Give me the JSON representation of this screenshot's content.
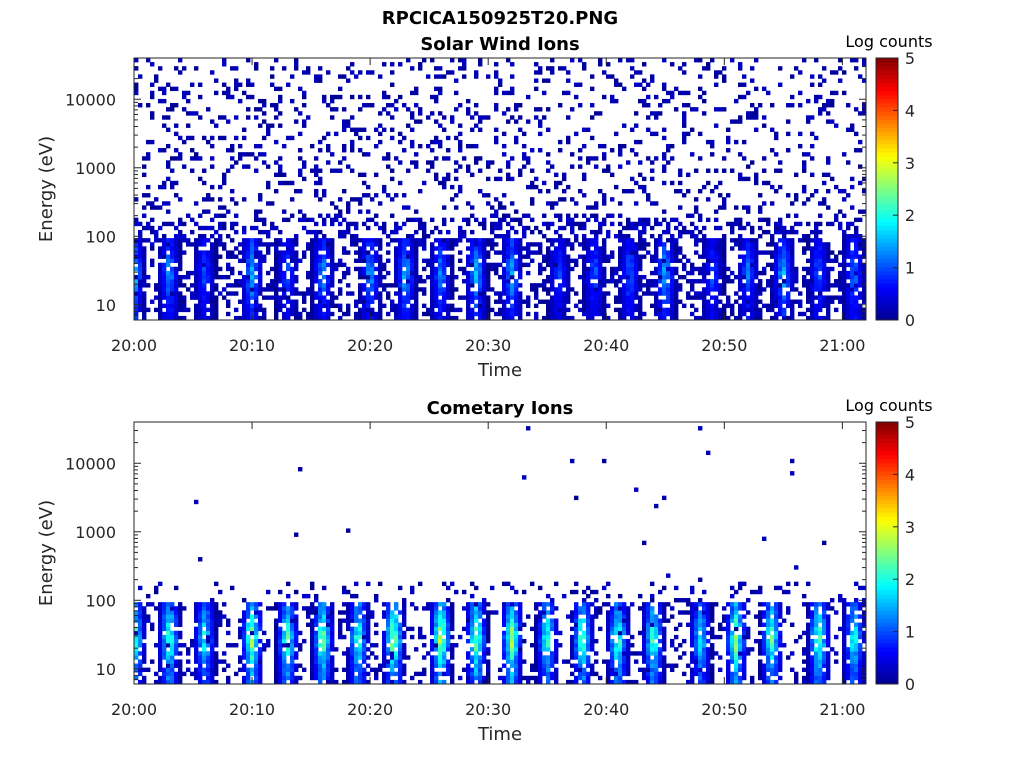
{
  "figure_title": "RPCICA150925T20.PNG",
  "colormap": [
    "#00008f",
    "#0000ff",
    "#0080ff",
    "#00ffff",
    "#80ff80",
    "#ffff00",
    "#ff8000",
    "#ff0000",
    "#800000"
  ],
  "chart_data": [
    {
      "type": "heatmap",
      "title": "Solar Wind Ions",
      "xlabel": "Time",
      "ylabel": "Energy (eV)",
      "y_scale": "log",
      "ylim": [
        6,
        40000
      ],
      "xlim": [
        "20:00",
        "21:02"
      ],
      "x_ticks": [
        "20:00",
        "20:10",
        "20:20",
        "20:30",
        "20:40",
        "20:50",
        "21:00"
      ],
      "y_ticks": [
        "10",
        "100",
        "1000",
        "10000"
      ],
      "colorbar": {
        "label": "Log counts",
        "range": [
          0,
          5
        ],
        "ticks": [
          "0",
          "1",
          "2",
          "3",
          "4",
          "5"
        ]
      },
      "high_energy_background": "sparse counts (log counts ~0-0.5) spread across 100-30000 eV at all times",
      "bursts": [
        {
          "time": "20:00",
          "log_counts": 2.0
        },
        {
          "time": "20:03",
          "log_counts": 1.6
        },
        {
          "time": "20:06",
          "log_counts": 1.2
        },
        {
          "time": "20:10",
          "log_counts": 1.8
        },
        {
          "time": "20:13",
          "log_counts": 1.2
        },
        {
          "time": "20:16",
          "log_counts": 1.6
        },
        {
          "time": "20:20",
          "log_counts": 1.7
        },
        {
          "time": "20:23",
          "log_counts": 1.8
        },
        {
          "time": "20:26",
          "log_counts": 1.5
        },
        {
          "time": "20:29",
          "log_counts": 1.8
        },
        {
          "time": "20:32",
          "log_counts": 1.7
        },
        {
          "time": "20:36",
          "log_counts": 1.2
        },
        {
          "time": "20:39",
          "log_counts": 1.3
        },
        {
          "time": "20:42",
          "log_counts": 1.4
        },
        {
          "time": "20:45",
          "log_counts": 1.8
        },
        {
          "time": "20:49",
          "log_counts": 1.2
        },
        {
          "time": "20:52",
          "log_counts": 1.4
        },
        {
          "time": "20:55",
          "log_counts": 1.8
        },
        {
          "time": "20:58",
          "log_counts": 1.3
        },
        {
          "time": "21:01",
          "log_counts": 1.5
        }
      ]
    },
    {
      "type": "heatmap",
      "title": "Cometary Ions",
      "xlabel": "Time",
      "ylabel": "Energy (eV)",
      "y_scale": "log",
      "ylim": [
        6,
        40000
      ],
      "xlim": [
        "20:00",
        "21:02"
      ],
      "x_ticks": [
        "20:00",
        "20:10",
        "20:20",
        "20:30",
        "20:40",
        "20:50",
        "21:00"
      ],
      "y_ticks": [
        "10",
        "100",
        "1000",
        "10000"
      ],
      "colorbar": {
        "label": "Log counts",
        "range": [
          0,
          5
        ],
        "ticks": [
          "0",
          "1",
          "2",
          "3",
          "4",
          "5"
        ]
      },
      "high_energy_background": "very sparse isolated counts above 200 eV",
      "bursts": [
        {
          "time": "20:00",
          "log_counts": 3.0
        },
        {
          "time": "20:03",
          "log_counts": 2.8
        },
        {
          "time": "20:06",
          "log_counts": 2.3
        },
        {
          "time": "20:10",
          "log_counts": 3.0
        },
        {
          "time": "20:13",
          "log_counts": 2.7
        },
        {
          "time": "20:16",
          "log_counts": 2.9
        },
        {
          "time": "20:19",
          "log_counts": 2.6
        },
        {
          "time": "20:22",
          "log_counts": 3.1
        },
        {
          "time": "20:26",
          "log_counts": 3.3
        },
        {
          "time": "20:29",
          "log_counts": 2.9
        },
        {
          "time": "20:32",
          "log_counts": 3.1
        },
        {
          "time": "20:35",
          "log_counts": 2.5
        },
        {
          "time": "20:38",
          "log_counts": 2.8
        },
        {
          "time": "20:41",
          "log_counts": 2.8
        },
        {
          "time": "20:44",
          "log_counts": 2.7
        },
        {
          "time": "20:48",
          "log_counts": 2.2
        },
        {
          "time": "20:51",
          "log_counts": 3.0
        },
        {
          "time": "20:54",
          "log_counts": 2.7
        },
        {
          "time": "20:58",
          "log_counts": 2.9
        },
        {
          "time": "21:01",
          "log_counts": 2.4
        }
      ]
    }
  ]
}
